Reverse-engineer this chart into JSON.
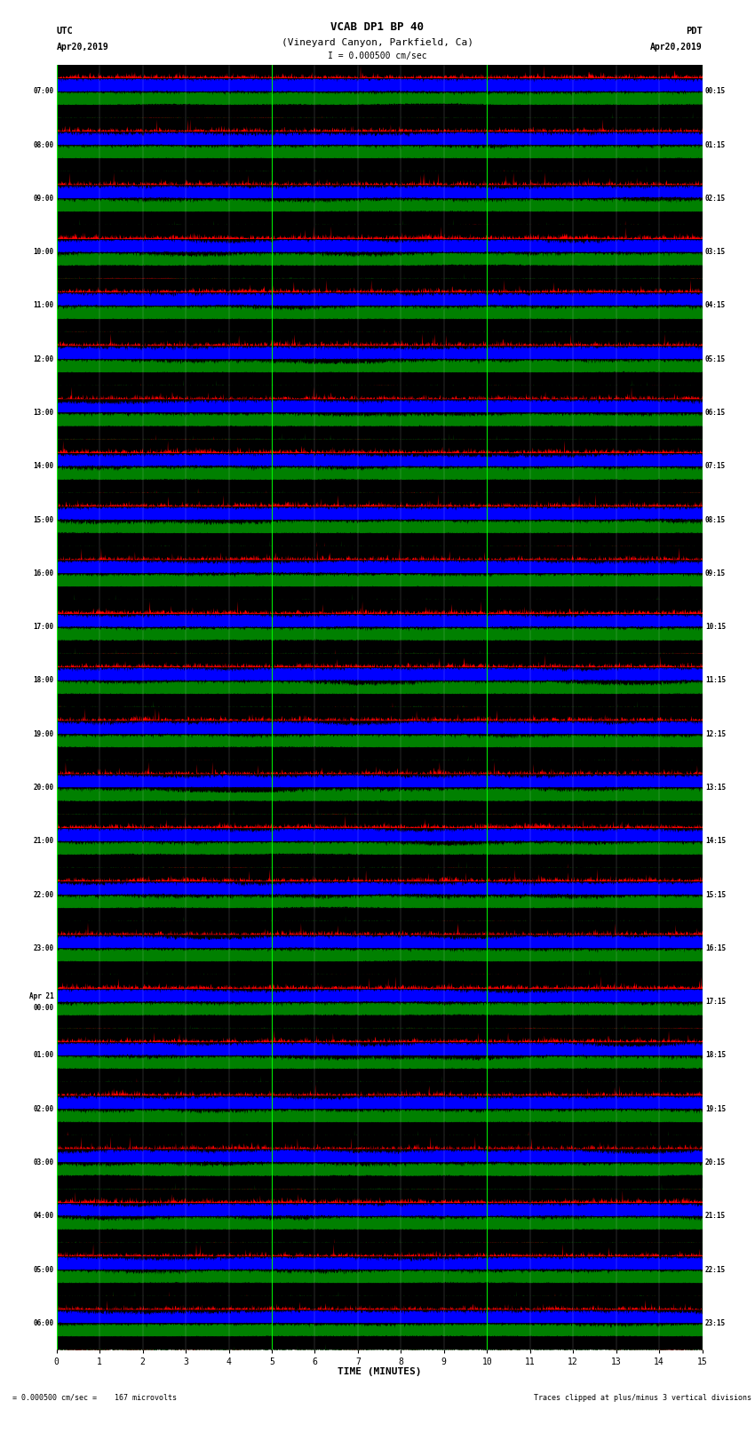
{
  "title_line1": "VCAB DP1 BP 40",
  "title_line2": "(Vineyard Canyon, Parkfield, Ca)",
  "scale_bar": "I = 0.000500 cm/sec",
  "utc_label": "UTC",
  "utc_date": "Apr20,2019",
  "pdt_label": "PDT",
  "pdt_date": "Apr20,2019",
  "xlabel": "TIME (MINUTES)",
  "bottom_left": "= 0.000500 cm/sec =    167 microvolts",
  "bottom_right": "Traces clipped at plus/minus 3 vertical divisions",
  "left_times": [
    "07:00",
    "08:00",
    "09:00",
    "10:00",
    "11:00",
    "12:00",
    "13:00",
    "14:00",
    "15:00",
    "16:00",
    "17:00",
    "18:00",
    "19:00",
    "20:00",
    "21:00",
    "22:00",
    "23:00",
    "Apr 21\n00:00",
    "01:00",
    "02:00",
    "03:00",
    "04:00",
    "05:00",
    "06:00"
  ],
  "right_times": [
    "00:15",
    "01:15",
    "02:15",
    "03:15",
    "04:15",
    "05:15",
    "06:15",
    "07:15",
    "08:15",
    "09:15",
    "10:15",
    "11:15",
    "12:15",
    "13:15",
    "14:15",
    "15:15",
    "16:15",
    "17:15",
    "18:15",
    "19:15",
    "20:15",
    "21:15",
    "22:15",
    "23:15"
  ],
  "n_rows": 24,
  "n_minutes": 15,
  "colors": {
    "red": "#FF0000",
    "green": "#008000",
    "blue": "#0000FF",
    "black": "#000000",
    "white": "#FFFFFF",
    "lime": "#00FF00"
  },
  "xmin": 0,
  "xmax": 15,
  "xticks": [
    0,
    1,
    2,
    3,
    4,
    5,
    6,
    7,
    8,
    9,
    10,
    11,
    12,
    13,
    14,
    15
  ]
}
